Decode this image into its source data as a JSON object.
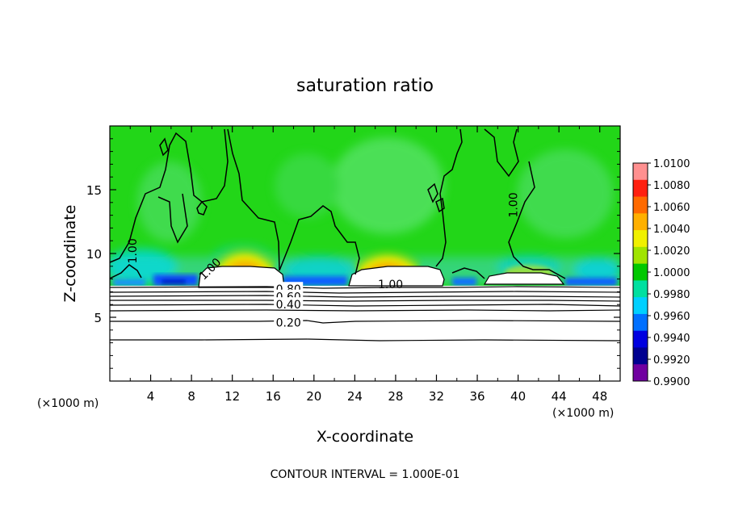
{
  "chart_data": {
    "type": "heatmap",
    "title": "saturation ratio",
    "xlabel": "X-coordinate",
    "ylabel": "Z-coordinate",
    "x_unit_label": "(×1000 m)",
    "z_unit_label": "(×1000 m)",
    "footer": "CONTOUR INTERVAL = 1.000E-01",
    "xlim": [
      0,
      50
    ],
    "ylim": [
      0,
      20
    ],
    "x_ticks": [
      4,
      8,
      12,
      16,
      20,
      24,
      28,
      32,
      36,
      40,
      44,
      48
    ],
    "y_ticks": [
      5,
      10,
      15
    ],
    "colorbar": {
      "min": 0.99,
      "max": 1.01,
      "tick_labels": [
        "1.0100",
        "1.0080",
        "1.0060",
        "1.0040",
        "1.0020",
        "1.0000",
        "0.9980",
        "0.9960",
        "0.9940",
        "0.9920",
        "0.9900"
      ],
      "colors": [
        "#ff9090",
        "#ff2010",
        "#ff6a00",
        "#ffb000",
        "#f0f000",
        "#a0e400",
        "#00c800",
        "#00e0a0",
        "#00d0ff",
        "#0070ff",
        "#0000e0",
        "#000090",
        "#7000a0"
      ]
    },
    "contour_labels": [
      {
        "text": "1.00",
        "x": 2.2,
        "z": 10.2,
        "rotate": -90
      },
      {
        "text": "1.00",
        "x": 9.8,
        "z": 8.8,
        "rotate": -45
      },
      {
        "text": "1.00",
        "x": 27.5,
        "z": 7.6,
        "rotate": 0
      },
      {
        "text": "1.00",
        "x": 39.5,
        "z": 13.8,
        "rotate": -90
      },
      {
        "text": "0.80",
        "x": 17.5,
        "z": 7.2,
        "rotate": 0
      },
      {
        "text": "0.60",
        "x": 17.5,
        "z": 6.6,
        "rotate": 0
      },
      {
        "text": "0.40",
        "x": 17.5,
        "z": 6.0,
        "rotate": 0
      },
      {
        "text": "0.20",
        "x": 17.5,
        "z": 4.6,
        "rotate": 0
      }
    ],
    "colors": {
      "background_field": "#22d618",
      "contour": "#000000"
    }
  }
}
